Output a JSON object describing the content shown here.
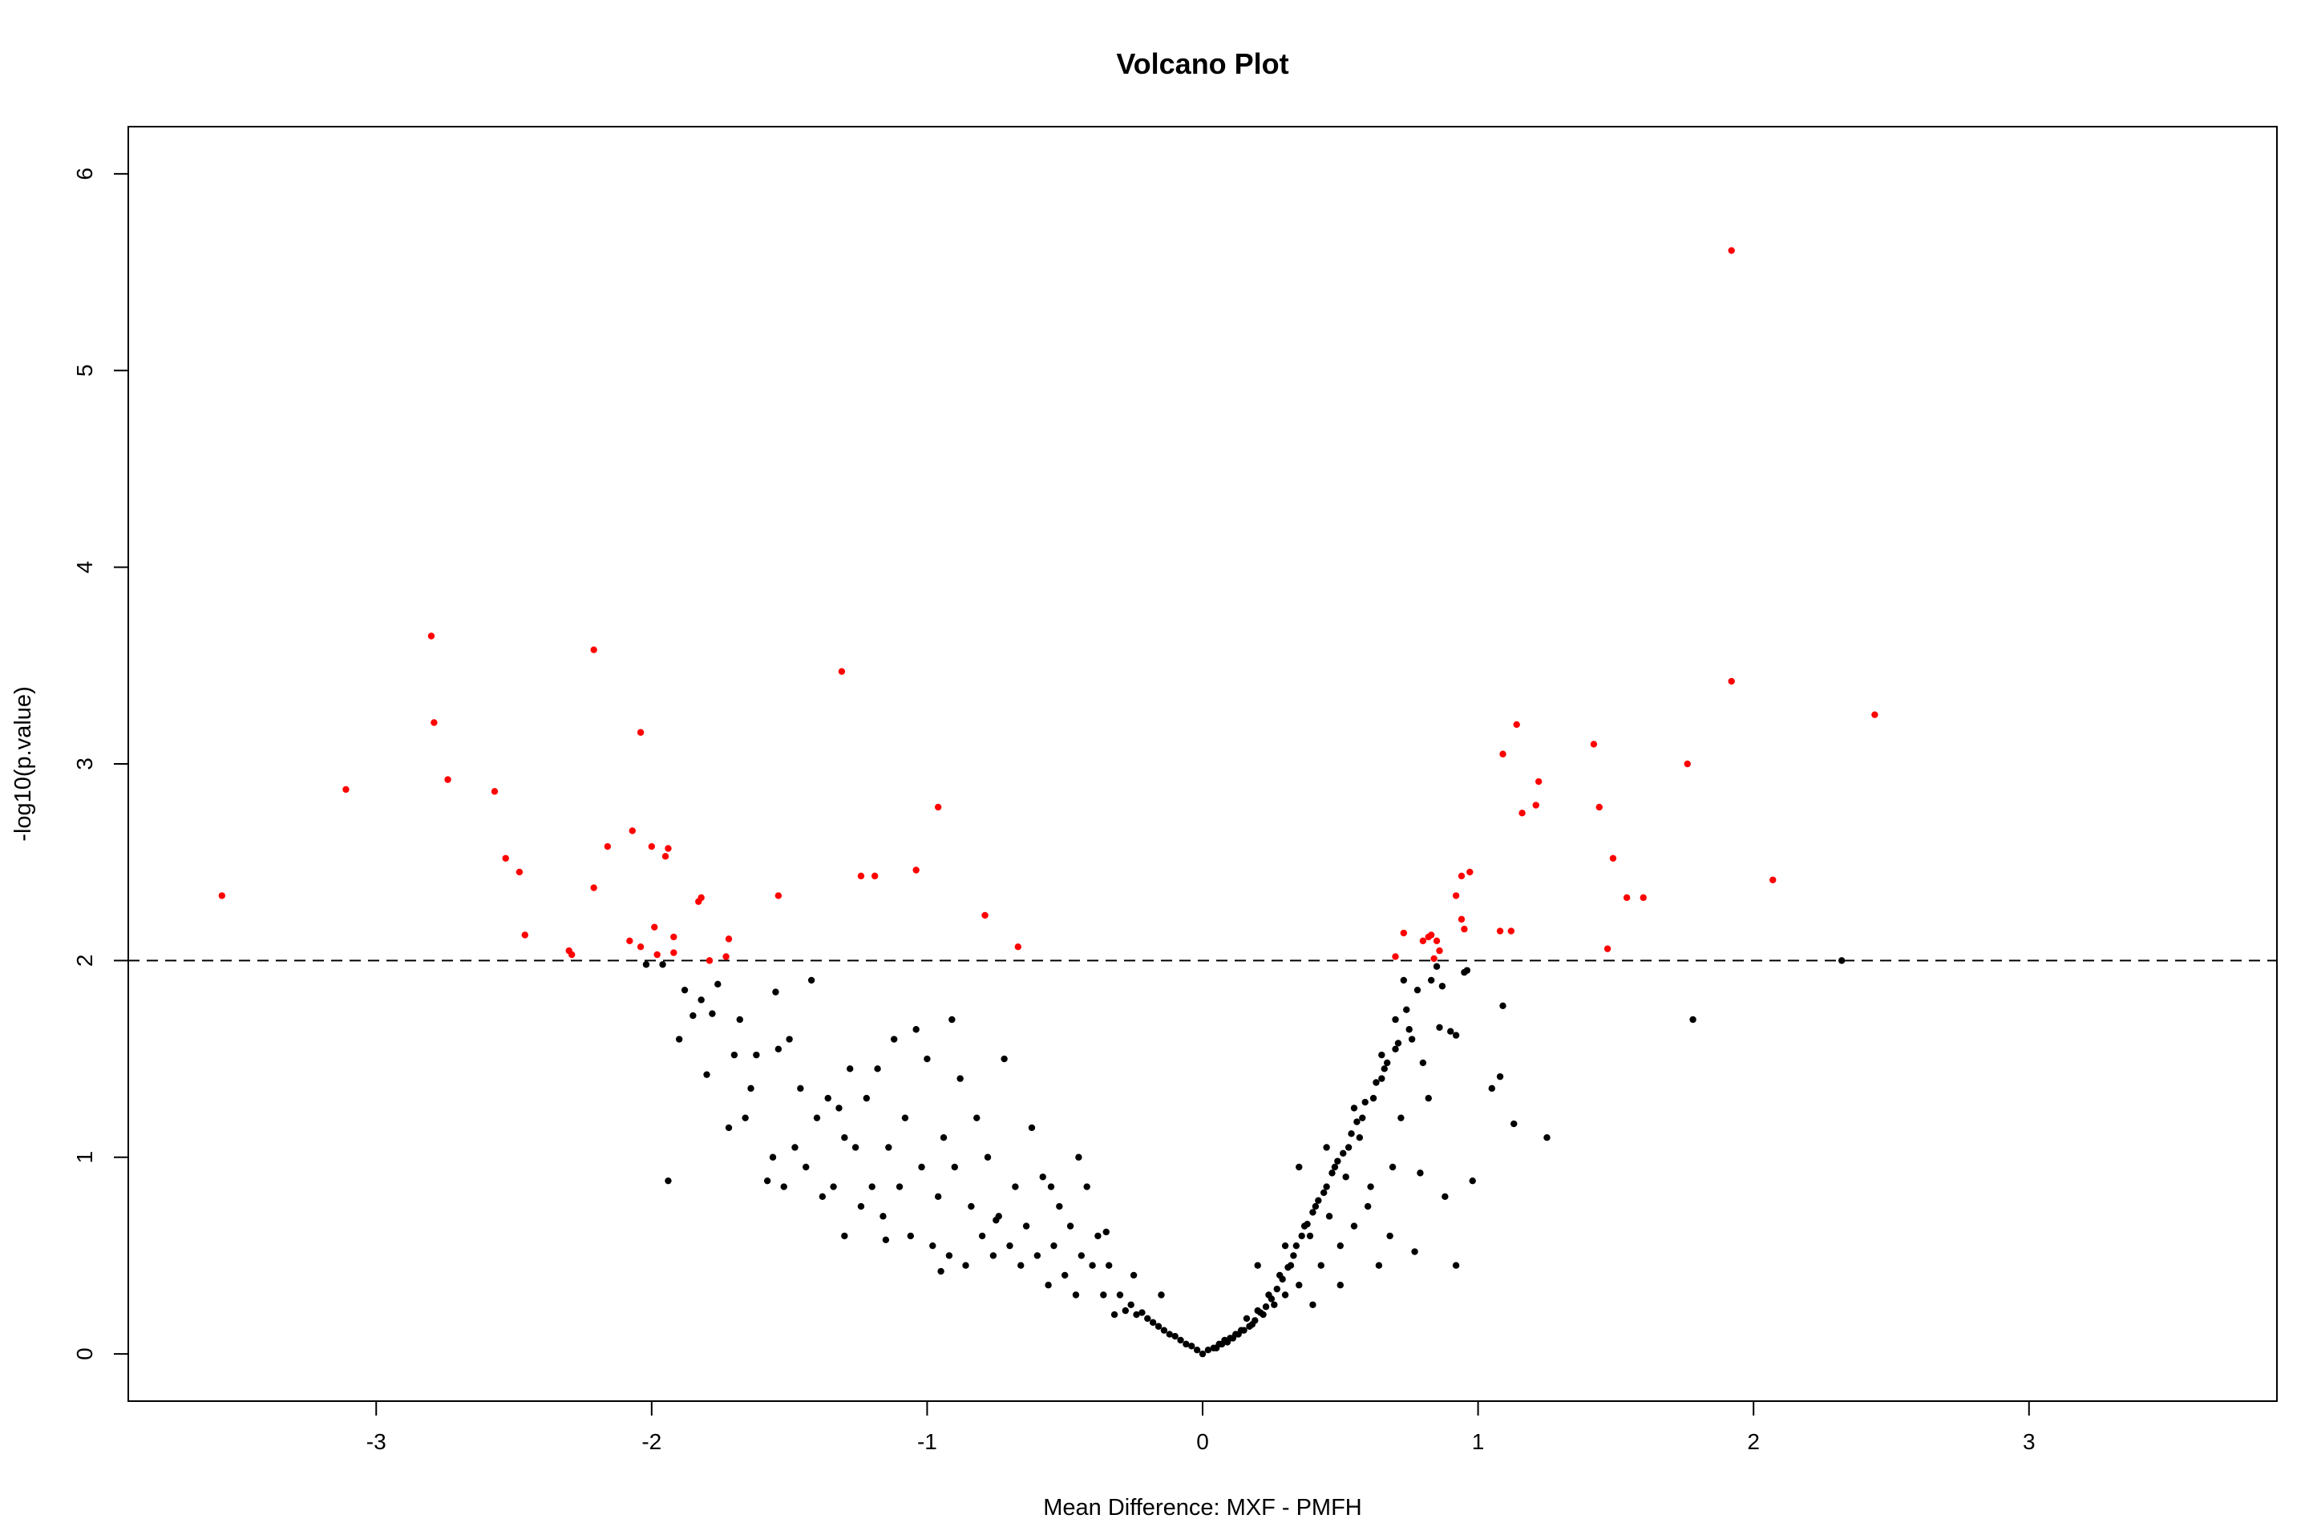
{
  "chart_data": {
    "type": "scatter",
    "title": "Volcano Plot",
    "xlabel": "Mean Difference: MXF - PMFH",
    "ylabel": "-log10(p.value)",
    "xlim": [
      -3.9,
      3.9
    ],
    "ylim": [
      -0.24,
      6.24
    ],
    "x_ticks": [
      -3,
      -2,
      -1,
      0,
      1,
      2,
      3
    ],
    "y_ticks": [
      0,
      1,
      2,
      3,
      4,
      5,
      6
    ],
    "threshold_y": 2,
    "threshold_style": "dashed",
    "grid": false,
    "legend": "none",
    "colors": {
      "significant": "#ff0000",
      "not_significant": "#000000",
      "axis": "#000000"
    },
    "series": [
      {
        "color": "#ff0000",
        "points": [
          [
            1.92,
            5.61
          ],
          [
            1.92,
            3.42
          ],
          [
            2.44,
            3.25
          ],
          [
            2.07,
            2.41
          ],
          [
            1.76,
            3.0
          ],
          [
            1.6,
            2.32
          ],
          [
            1.54,
            2.32
          ],
          [
            1.49,
            2.52
          ],
          [
            1.47,
            2.06
          ],
          [
            1.44,
            2.78
          ],
          [
            1.42,
            3.1
          ],
          [
            1.22,
            2.91
          ],
          [
            1.21,
            2.79
          ],
          [
            1.16,
            2.75
          ],
          [
            1.14,
            3.2
          ],
          [
            1.12,
            2.15
          ],
          [
            1.09,
            3.05
          ],
          [
            1.08,
            2.15
          ],
          [
            0.97,
            2.45
          ],
          [
            0.94,
            2.43
          ],
          [
            0.95,
            2.16
          ],
          [
            0.94,
            2.21
          ],
          [
            0.92,
            2.33
          ],
          [
            0.85,
            2.1
          ],
          [
            0.86,
            2.05
          ],
          [
            0.84,
            2.01
          ],
          [
            0.83,
            2.13
          ],
          [
            0.82,
            2.12
          ],
          [
            0.8,
            2.1
          ],
          [
            0.73,
            2.14
          ],
          [
            0.7,
            2.02
          ],
          [
            -0.67,
            2.07
          ],
          [
            -0.79,
            2.23
          ],
          [
            -0.96,
            2.78
          ],
          [
            -1.04,
            2.46
          ],
          [
            -1.19,
            2.43
          ],
          [
            -1.24,
            2.43
          ],
          [
            -1.31,
            3.47
          ],
          [
            -1.54,
            2.33
          ],
          [
            -1.72,
            2.11
          ],
          [
            -1.73,
            2.02
          ],
          [
            -1.79,
            2.0
          ],
          [
            -1.82,
            2.32
          ],
          [
            -1.83,
            2.3
          ],
          [
            -1.92,
            2.04
          ],
          [
            -1.92,
            2.12
          ],
          [
            -1.94,
            2.57
          ],
          [
            -1.95,
            2.53
          ],
          [
            -1.98,
            2.03
          ],
          [
            -1.99,
            2.17
          ],
          [
            -2.0,
            2.58
          ],
          [
            -2.04,
            2.07
          ],
          [
            -2.04,
            3.16
          ],
          [
            -2.07,
            2.66
          ],
          [
            -2.08,
            2.1
          ],
          [
            -2.16,
            2.58
          ],
          [
            -2.21,
            3.58
          ],
          [
            -2.21,
            2.37
          ],
          [
            -2.29,
            2.03
          ],
          [
            -2.3,
            2.05
          ],
          [
            -2.46,
            2.13
          ],
          [
            -2.48,
            2.45
          ],
          [
            -2.53,
            2.52
          ],
          [
            -2.57,
            2.86
          ],
          [
            -2.74,
            2.92
          ],
          [
            -2.79,
            3.21
          ],
          [
            -2.8,
            3.65
          ],
          [
            -3.11,
            2.87
          ],
          [
            -3.56,
            2.33
          ]
        ]
      },
      {
        "color": "#000000",
        "points": [
          [
            2.32,
            2.0
          ],
          [
            1.78,
            1.7
          ],
          [
            1.25,
            1.1
          ],
          [
            1.13,
            1.17
          ],
          [
            1.09,
            1.77
          ],
          [
            1.08,
            1.41
          ],
          [
            1.05,
            1.35
          ],
          [
            0.98,
            0.88
          ],
          [
            0.96,
            1.95
          ],
          [
            0.95,
            1.94
          ],
          [
            0.92,
            0.45
          ],
          [
            0.92,
            1.62
          ],
          [
            0.9,
            1.64
          ],
          [
            0.88,
            0.8
          ],
          [
            0.87,
            1.87
          ],
          [
            0.86,
            1.66
          ],
          [
            0.85,
            1.97
          ],
          [
            0.83,
            1.9
          ],
          [
            0.82,
            1.3
          ],
          [
            0.8,
            1.48
          ],
          [
            0.79,
            0.92
          ],
          [
            0.77,
            0.52
          ],
          [
            0.76,
            1.6
          ],
          [
            0.74,
            1.75
          ],
          [
            0.73,
            1.9
          ],
          [
            0.72,
            1.2
          ],
          [
            0.7,
            1.55
          ],
          [
            0.69,
            0.95
          ],
          [
            0.68,
            0.6
          ],
          [
            0.66,
            1.45
          ],
          [
            0.65,
            1.4
          ],
          [
            0.64,
            0.45
          ],
          [
            0.62,
            1.3
          ],
          [
            0.6,
            0.75
          ],
          [
            0.58,
            1.2
          ],
          [
            0.57,
            1.1
          ],
          [
            0.55,
            0.65
          ],
          [
            0.53,
            1.05
          ],
          [
            0.52,
            0.9
          ],
          [
            0.5,
            0.55
          ],
          [
            0.48,
            0.95
          ],
          [
            0.46,
            0.7
          ],
          [
            0.45,
            0.85
          ],
          [
            0.43,
            0.45
          ],
          [
            0.41,
            0.75
          ],
          [
            0.39,
            0.6
          ],
          [
            0.37,
            0.65
          ],
          [
            0.35,
            0.35
          ],
          [
            0.34,
            0.55
          ],
          [
            0.32,
            0.45
          ],
          [
            0.3,
            0.3
          ],
          [
            0.28,
            0.4
          ],
          [
            0.26,
            0.25
          ],
          [
            0.24,
            0.3
          ],
          [
            0.22,
            0.2
          ],
          [
            0.2,
            0.22
          ],
          [
            0.18,
            0.15
          ],
          [
            0.16,
            0.18
          ],
          [
            0.14,
            0.12
          ],
          [
            0.12,
            0.1
          ],
          [
            0.1,
            0.08
          ],
          [
            0.08,
            0.07
          ],
          [
            0.06,
            0.05
          ],
          [
            0.04,
            0.03
          ],
          [
            0.02,
            0.02
          ],
          [
            0.0,
            0.0
          ],
          [
            0.75,
            1.65
          ],
          [
            0.71,
            1.58
          ],
          [
            0.67,
            1.48
          ],
          [
            0.63,
            1.38
          ],
          [
            0.59,
            1.28
          ],
          [
            0.56,
            1.18
          ],
          [
            0.54,
            1.12
          ],
          [
            0.51,
            1.02
          ],
          [
            0.49,
            0.98
          ],
          [
            0.47,
            0.92
          ],
          [
            0.44,
            0.82
          ],
          [
            0.42,
            0.78
          ],
          [
            0.4,
            0.72
          ],
          [
            0.38,
            0.66
          ],
          [
            0.36,
            0.6
          ],
          [
            0.33,
            0.5
          ],
          [
            0.31,
            0.44
          ],
          [
            0.29,
            0.38
          ],
          [
            0.27,
            0.33
          ],
          [
            0.25,
            0.28
          ],
          [
            0.23,
            0.24
          ],
          [
            0.21,
            0.21
          ],
          [
            0.19,
            0.17
          ],
          [
            0.17,
            0.14
          ],
          [
            0.15,
            0.12
          ],
          [
            0.13,
            0.1
          ],
          [
            0.11,
            0.08
          ],
          [
            0.09,
            0.06
          ],
          [
            0.07,
            0.05
          ],
          [
            0.05,
            0.03
          ],
          [
            -0.02,
            0.02
          ],
          [
            -0.04,
            0.04
          ],
          [
            -0.06,
            0.05
          ],
          [
            -0.08,
            0.07
          ],
          [
            -0.1,
            0.09
          ],
          [
            -0.12,
            0.1
          ],
          [
            -0.14,
            0.12
          ],
          [
            -0.16,
            0.14
          ],
          [
            -0.18,
            0.16
          ],
          [
            -0.2,
            0.18
          ],
          [
            -0.22,
            0.21
          ],
          [
            -0.24,
            0.2
          ],
          [
            -0.26,
            0.25
          ],
          [
            -0.28,
            0.22
          ],
          [
            -0.3,
            0.3
          ],
          [
            -0.32,
            0.2
          ],
          [
            -0.34,
            0.45
          ],
          [
            -0.36,
            0.3
          ],
          [
            -0.38,
            0.6
          ],
          [
            -0.4,
            0.45
          ],
          [
            -0.42,
            0.85
          ],
          [
            -0.44,
            0.5
          ],
          [
            -0.46,
            0.3
          ],
          [
            -0.48,
            0.65
          ],
          [
            -0.5,
            0.4
          ],
          [
            -0.52,
            0.75
          ],
          [
            -0.54,
            0.55
          ],
          [
            -0.56,
            0.35
          ],
          [
            -0.58,
            0.9
          ],
          [
            -0.6,
            0.5
          ],
          [
            -0.62,
            1.15
          ],
          [
            -0.64,
            0.65
          ],
          [
            -0.66,
            0.45
          ],
          [
            -0.68,
            0.85
          ],
          [
            -0.7,
            0.55
          ],
          [
            -0.72,
            1.5
          ],
          [
            -0.74,
            0.7
          ],
          [
            -0.76,
            0.5
          ],
          [
            -0.78,
            1.0
          ],
          [
            -0.8,
            0.6
          ],
          [
            -0.82,
            1.2
          ],
          [
            -0.84,
            0.75
          ],
          [
            -0.86,
            0.45
          ],
          [
            -0.88,
            1.4
          ],
          [
            -0.9,
            0.95
          ],
          [
            -0.91,
            1.7
          ],
          [
            -0.92,
            0.5
          ],
          [
            -0.94,
            1.1
          ],
          [
            -0.96,
            0.8
          ],
          [
            -0.98,
            0.55
          ],
          [
            -1.0,
            1.5
          ],
          [
            -1.02,
            0.95
          ],
          [
            -1.04,
            1.65
          ],
          [
            -1.06,
            0.6
          ],
          [
            -1.08,
            1.2
          ],
          [
            -1.1,
            0.85
          ],
          [
            -1.12,
            1.6
          ],
          [
            -1.14,
            1.05
          ],
          [
            -1.16,
            0.7
          ],
          [
            -1.18,
            1.45
          ],
          [
            -1.2,
            0.85
          ],
          [
            -1.22,
            1.3
          ],
          [
            -1.24,
            0.75
          ],
          [
            -1.26,
            1.05
          ],
          [
            -1.28,
            1.45
          ],
          [
            -1.3,
            0.6
          ],
          [
            -1.32,
            1.25
          ],
          [
            -1.34,
            0.85
          ],
          [
            -1.36,
            1.3
          ],
          [
            -1.38,
            0.8
          ],
          [
            -1.4,
            1.2
          ],
          [
            -1.42,
            1.9
          ],
          [
            -1.44,
            0.95
          ],
          [
            -1.46,
            1.35
          ],
          [
            -1.48,
            1.05
          ],
          [
            -1.5,
            1.6
          ],
          [
            -1.52,
            0.85
          ],
          [
            -1.54,
            1.55
          ],
          [
            -1.56,
            1.0
          ],
          [
            -1.58,
            0.88
          ],
          [
            -1.62,
            1.52
          ],
          [
            -1.64,
            1.35
          ],
          [
            -1.66,
            1.2
          ],
          [
            -1.68,
            1.7
          ],
          [
            -1.7,
            1.52
          ],
          [
            -1.72,
            1.15
          ],
          [
            -1.76,
            1.88
          ],
          [
            -1.78,
            1.73
          ],
          [
            -1.8,
            1.42
          ],
          [
            -1.82,
            1.8
          ],
          [
            -1.85,
            1.72
          ],
          [
            -1.88,
            1.85
          ],
          [
            -1.9,
            1.6
          ],
          [
            -1.94,
            0.88
          ],
          [
            -1.96,
            1.98
          ],
          [
            -2.02,
            1.98
          ],
          [
            -1.55,
            1.84
          ],
          [
            -1.3,
            1.1
          ],
          [
            -1.15,
            0.58
          ],
          [
            -0.95,
            0.42
          ],
          [
            -0.75,
            0.68
          ],
          [
            -0.55,
            0.85
          ],
          [
            -0.45,
            1.0
          ],
          [
            -0.35,
            0.62
          ],
          [
            -0.25,
            0.4
          ],
          [
            -0.15,
            0.3
          ],
          [
            0.35,
            0.95
          ],
          [
            0.45,
            1.05
          ],
          [
            0.55,
            1.25
          ],
          [
            0.65,
            1.52
          ],
          [
            0.7,
            1.7
          ],
          [
            0.78,
            1.85
          ],
          [
            0.61,
            0.85
          ],
          [
            0.5,
            0.35
          ],
          [
            0.4,
            0.25
          ],
          [
            0.3,
            0.55
          ],
          [
            0.2,
            0.45
          ]
        ]
      }
    ]
  }
}
